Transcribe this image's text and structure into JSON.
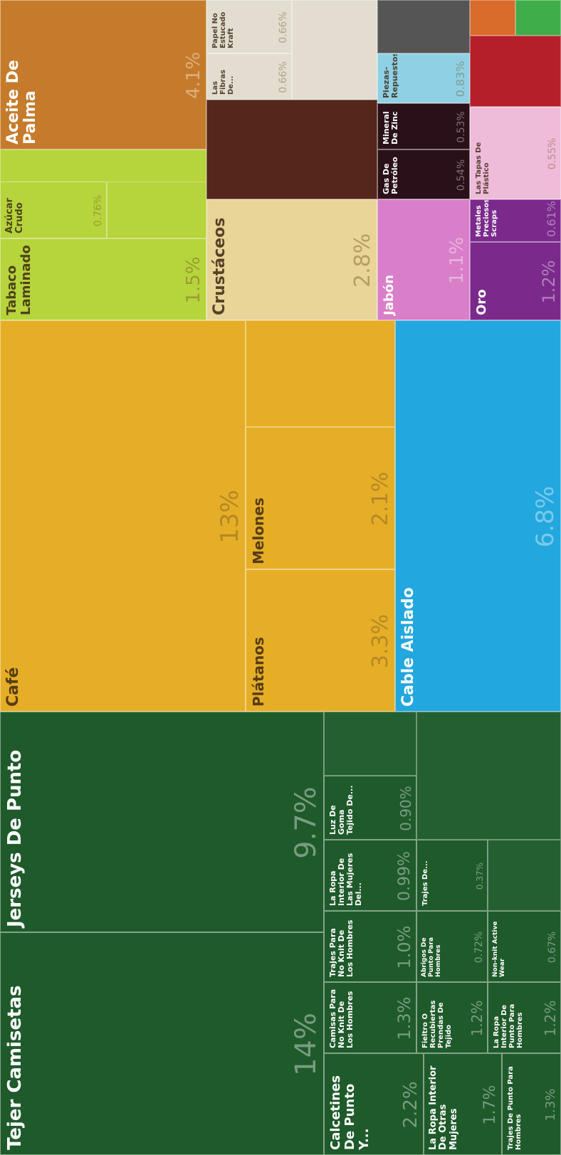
{
  "chart_data": {
    "type": "treemap",
    "labels": [
      "Tejer Camisetas",
      "Jerseys De Punto",
      "Calcetines De Punto Y...",
      "La Ropa Interior De Otras Mujeres",
      "Trajes De Punto Para Hombres",
      "Camisas Para No Knit De Los Hombres",
      "Fieltro O Recubiertas Prendas De Tejido",
      "La Ropa Interior De Punto Para Hombres",
      "Trajes Para No Knit De Los Hombres",
      "Abrigos De Punto Para Hombres",
      "Non-knit Active Wear",
      "La Ropa Interior De Las Mujeres Del...",
      "Luz De Goma Tejido De...",
      "Trajes De...",
      "Café",
      "Plátanos",
      "Melones",
      "Cable Aislado",
      "Tabaco Laminado",
      "Azúcar Crudo",
      "Aceite De Palma",
      "Crustáceos",
      "Papel No Estucado Kraft",
      "Las Fibras De...",
      "Jabón",
      "Oro",
      "Metales Preciosos Scraps",
      "Gas De Petróleo",
      "Mineral De Zinc",
      "Piezas-Repuestos",
      "Las Tapas De Plástico"
    ],
    "values": [
      14,
      9.7,
      2.2,
      1.7,
      1.3,
      1.3,
      1.2,
      1.2,
      1.0,
      0.72,
      0.67,
      0.99,
      0.9,
      0.37,
      13,
      3.3,
      2.1,
      6.8,
      1.5,
      0.76,
      4.1,
      2.8,
      0.66,
      0.66,
      1.1,
      1.2,
      0.61,
      0.54,
      0.53,
      0.83,
      0.55
    ],
    "value_labels": [
      "14%",
      "9.7%",
      "2.2%",
      "1.7%",
      "1.3%",
      "1.3%",
      "1.2%",
      "1.2%",
      "1.0%",
      "0.72%",
      "0.67%",
      "0.99%",
      "0.90%",
      "0.37%",
      "13%",
      "3.3%",
      "2.1%",
      "6.8%",
      "1.5%",
      "0.76%",
      "4.1%",
      "2.8%",
      "0.66%",
      "0.66%",
      "1.1%",
      "1.2%",
      "0.61%",
      "0.54%",
      "0.53%",
      "0.83%",
      "0.55%"
    ],
    "colors": [
      "#1f5a2b",
      "#1f5a2b",
      "#1f5a2b",
      "#1f5a2b",
      "#1f5a2b",
      "#1f5a2b",
      "#1f5a2b",
      "#1f5a2b",
      "#1f5a2b",
      "#1f5a2b",
      "#1f5a2b",
      "#1f5a2b",
      "#1f5a2b",
      "#1f5a2b",
      "#e6ae26",
      "#e6ae26",
      "#e6ae26",
      "#22a7de",
      "#b6d43b",
      "#b6d43b",
      "#c57b2b",
      "#e8d597",
      "#e2ddd0",
      "#e2ddd0",
      "#d97fc9",
      "#7b2a8c",
      "#7b2a8c",
      "#2a1018",
      "#2a1018",
      "#8fd0e4",
      "#eebbd9"
    ]
  }
}
